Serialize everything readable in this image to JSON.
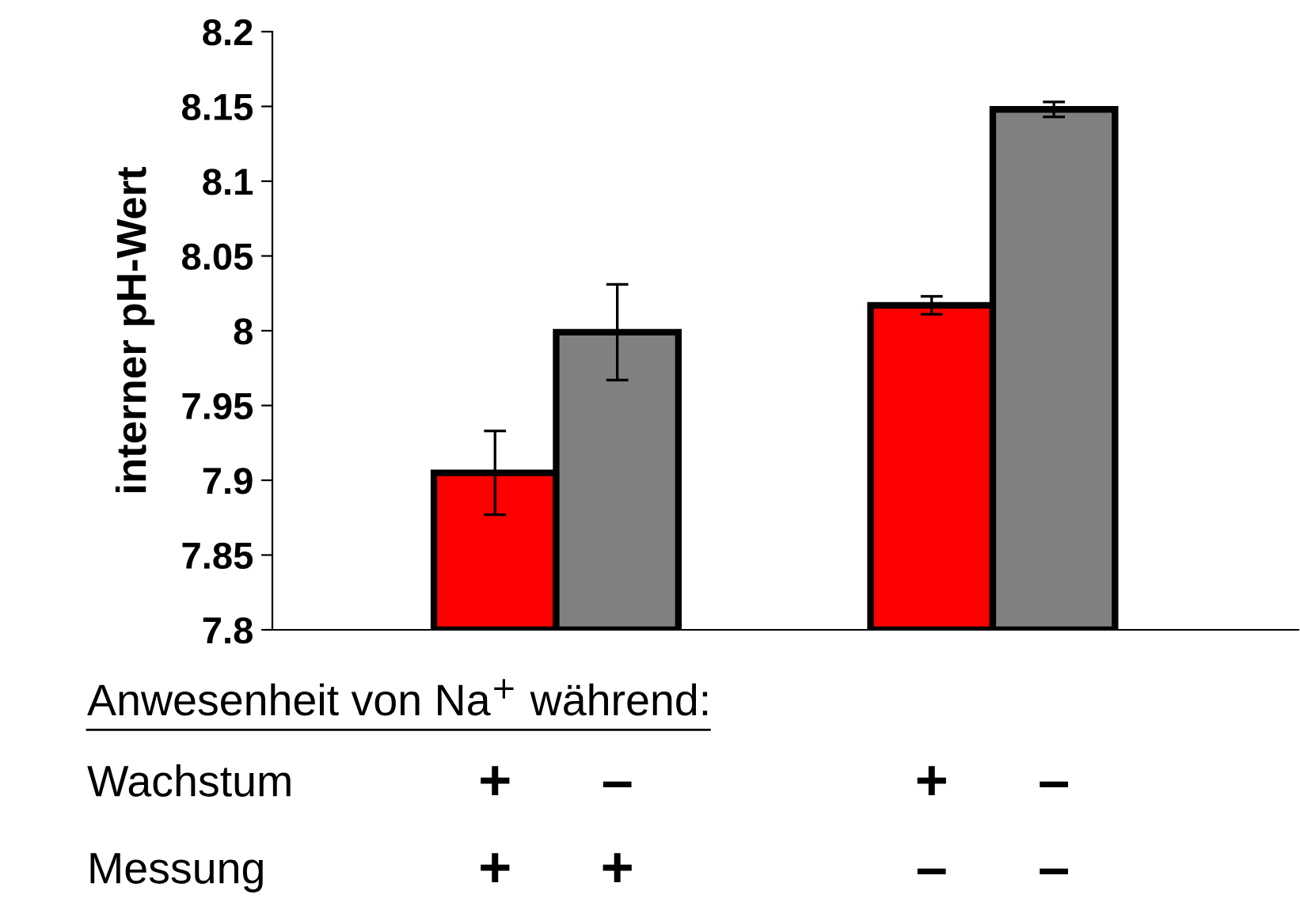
{
  "chart_data": {
    "type": "bar",
    "ylabel": "interner pH-Wert",
    "categories": [
      null,
      null
    ],
    "series": [
      {
        "color": "#ff0000",
        "values": [
          7.905,
          8.017
        ],
        "errors": [
          0.028,
          0.006
        ]
      },
      {
        "color": "#808080",
        "values": [
          7.999,
          8.148
        ],
        "errors": [
          0.032,
          0.005
        ]
      }
    ],
    "ylim": [
      7.8,
      8.2
    ],
    "yticks": [
      7.8,
      7.85,
      7.9,
      7.95,
      8,
      8.05,
      8.1,
      8.15,
      8.2
    ],
    "grid": false,
    "legend": false,
    "annotations": [
      "Anwesenheit von Na$^{+}$ während:",
      "Wachstum",
      "+",
      "–",
      "+",
      "–",
      "Messung",
      "+",
      "+",
      "–",
      "–"
    ]
  }
}
